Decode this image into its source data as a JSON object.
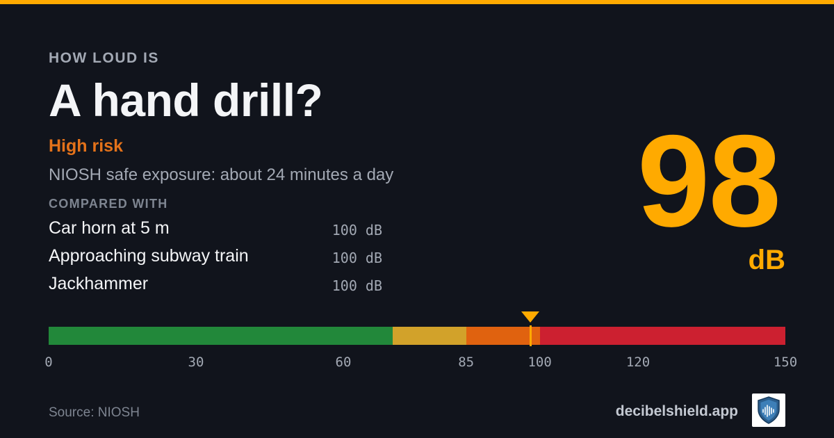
{
  "colors": {
    "accent": "#ffaa00",
    "risk": "#e4721a",
    "green": "#22883a",
    "yellow": "#d2a22a",
    "orange": "#e0620f",
    "red": "#cc2030"
  },
  "header": {
    "eyebrow": "HOW LOUD IS",
    "title": "A hand drill?"
  },
  "risk": {
    "label": "High risk"
  },
  "exposure": "NIOSH safe exposure: about 24 minutes a day",
  "compared": {
    "label": "COMPARED WITH",
    "items": [
      {
        "name": "Car horn at 5 m",
        "value": "100 dB"
      },
      {
        "name": "Approaching subway train",
        "value": "100 dB"
      },
      {
        "name": "Jackhammer",
        "value": "100 dB"
      }
    ]
  },
  "reading": {
    "value": "98",
    "unit": "dB"
  },
  "scale": {
    "min": 0,
    "max": 150,
    "marker_value": 98,
    "segments": [
      {
        "from": 0,
        "to": 70,
        "color": "#22883a"
      },
      {
        "from": 70,
        "to": 85,
        "color": "#d2a22a"
      },
      {
        "from": 85,
        "to": 100,
        "color": "#e0620f"
      },
      {
        "from": 100,
        "to": 150,
        "color": "#cc2030"
      }
    ],
    "ticks": [
      "0",
      "30",
      "60",
      "85",
      "100",
      "120",
      "150"
    ]
  },
  "footer": {
    "source": "Source: NIOSH",
    "brand": "decibelshield.app",
    "logo_icon": "shield-soundwave-icon"
  }
}
